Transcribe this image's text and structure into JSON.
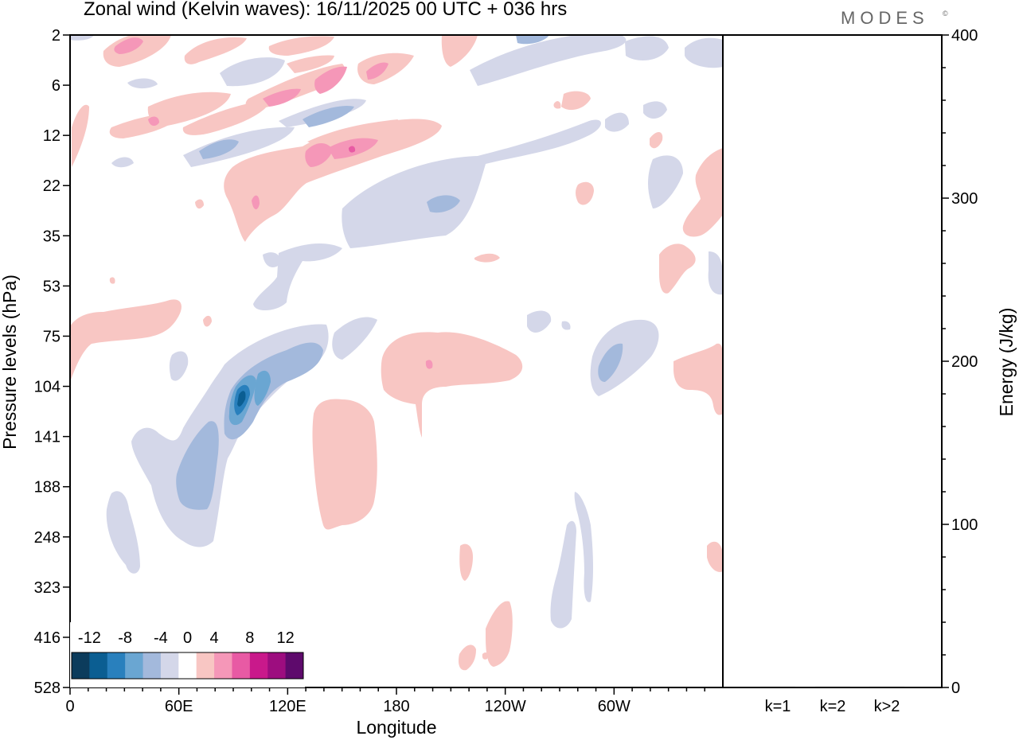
{
  "title": "Zonal wind (Kelvin waves):  16/11/2025  00 UTC  + 036 hrs",
  "brand": "MODES",
  "brand_mark": "©",
  "chart_data": [
    {
      "type": "heatmap",
      "title": "Zonal wind (Kelvin waves):  16/11/2025  00 UTC  + 036 hrs",
      "xlabel": "Longitude",
      "ylabel": "Pressure levels (hPa)",
      "x_ticks": [
        "0",
        "60E",
        "120E",
        "180",
        "120W",
        "60W"
      ],
      "x_tick_degrees": [
        0,
        60,
        120,
        180,
        240,
        300
      ],
      "xlim": [
        0,
        360
      ],
      "y_ticks": [
        "2",
        "6",
        "12",
        "22",
        "35",
        "53",
        "75",
        "104",
        "141",
        "188",
        "248",
        "323",
        "416",
        "528"
      ],
      "colorbar": {
        "labels": [
          "-12",
          "-8",
          "-4",
          "0",
          "4",
          "8",
          "12"
        ],
        "levels": [
          -14,
          -12,
          -10,
          -8,
          -6,
          -4,
          -2,
          2,
          4,
          6,
          8,
          10,
          12,
          14
        ],
        "colors": [
          "#0c3c5c",
          "#0b5e92",
          "#2980bd",
          "#6aa6d2",
          "#a3b9dc",
          "#d4d7e9",
          "#ffffff",
          "#f8c6c3",
          "#f597b8",
          "#e85aa4",
          "#c9198b",
          "#9d0d7f",
          "#5e0a6c"
        ]
      },
      "anomalies": [
        {
          "name": "strat-neg-1",
          "lon": 140,
          "level_index": 1.8,
          "value": -4
        },
        {
          "name": "strat-pos-1",
          "lon": 125,
          "level_index": 1.3,
          "value": 6
        },
        {
          "name": "strat-pos-2",
          "lon": 140,
          "level_index": 2.3,
          "value": 7
        },
        {
          "name": "strat-neg-2",
          "lon": 210,
          "level_index": 3.3,
          "value": -5
        },
        {
          "name": "upper-trop-neg",
          "lon": 95,
          "level_index": 7.8,
          "value": -11
        },
        {
          "name": "mid-trop-pos",
          "lon": 200,
          "level_index": 7.5,
          "value": 4
        },
        {
          "name": "lower-trop-pos",
          "lon": 148,
          "level_index": 9.3,
          "value": 3
        },
        {
          "name": "east-pac-neg",
          "lon": 300,
          "level_index": 7.3,
          "value": -6
        }
      ]
    },
    {
      "type": "bar",
      "ylabel": "Energy (J/kg)",
      "categories": [
        "k=1",
        "k=2",
        "k>2"
      ],
      "values": [
        0.5,
        0.5,
        0.5
      ],
      "ylim": [
        0,
        400
      ],
      "y_ticks": [
        "0",
        "100",
        "200",
        "300",
        "400"
      ],
      "y_tick_values": [
        0,
        100,
        200,
        300,
        400
      ]
    }
  ]
}
